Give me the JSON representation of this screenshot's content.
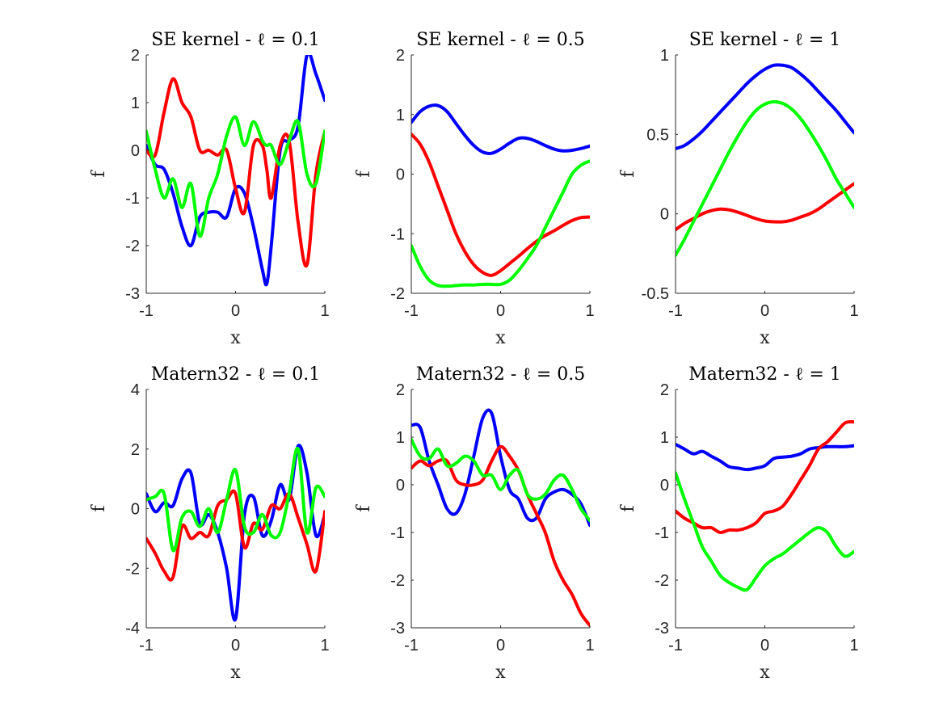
{
  "chart_data": [
    {
      "type": "line",
      "title": "SE kernel - ℓ = 0.1",
      "xlabel": "x",
      "ylabel": "f",
      "xlim": [
        -1,
        1
      ],
      "ylim": [
        -3,
        2
      ],
      "xticks": [
        "-1",
        "0",
        "1"
      ],
      "yticks": [
        "-3",
        "-2",
        "-1",
        "0",
        "1",
        "2"
      ],
      "x": [
        -1,
        -0.9,
        -0.8,
        -0.7,
        -0.6,
        -0.5,
        -0.4,
        -0.3,
        -0.2,
        -0.1,
        0,
        0.1,
        0.2,
        0.3,
        0.35,
        0.4,
        0.5,
        0.6,
        0.7,
        0.8,
        0.9,
        1
      ],
      "series": [
        {
          "color": "#0000ff",
          "values": [
            0.1,
            -0.3,
            -0.4,
            -0.9,
            -1.6,
            -2.0,
            -1.4,
            -1.3,
            -1.3,
            -1.4,
            -0.8,
            -0.9,
            -1.6,
            -2.5,
            -2.8,
            -2.0,
            0.0,
            0.2,
            0.5,
            2.0,
            1.6,
            1.05
          ]
        },
        {
          "color": "#ff0000",
          "values": [
            0.0,
            -0.1,
            0.8,
            1.5,
            1.0,
            0.7,
            0.0,
            0.0,
            -0.1,
            0.0,
            -0.8,
            -1.3,
            0.1,
            0.1,
            -0.4,
            -1.0,
            0.1,
            0.2,
            -1.5,
            -2.4,
            -0.5,
            0.4
          ]
        },
        {
          "color": "#00ff00",
          "values": [
            0.4,
            -0.4,
            -1.0,
            -0.6,
            -1.2,
            -0.7,
            -1.8,
            -1.0,
            -0.5,
            0.3,
            0.7,
            0.1,
            0.6,
            0.2,
            0.1,
            0.1,
            -0.3,
            0.2,
            0.6,
            -0.5,
            -0.7,
            0.4
          ]
        }
      ]
    },
    {
      "type": "line",
      "title": "SE kernel - ℓ = 0.5",
      "xlabel": "x",
      "ylabel": "f",
      "xlim": [
        -1,
        1
      ],
      "ylim": [
        -2,
        2
      ],
      "xticks": [
        "-1",
        "0",
        "1"
      ],
      "yticks": [
        "-2",
        "-1",
        "0",
        "1",
        "2"
      ],
      "x": [
        -1,
        -0.9,
        -0.8,
        -0.7,
        -0.6,
        -0.5,
        -0.4,
        -0.3,
        -0.2,
        -0.1,
        0,
        0.1,
        0.2,
        0.3,
        0.4,
        0.5,
        0.6,
        0.7,
        0.8,
        0.9,
        1
      ],
      "series": [
        {
          "color": "#0000ff",
          "values": [
            0.87,
            1.05,
            1.14,
            1.15,
            1.05,
            0.85,
            0.65,
            0.48,
            0.37,
            0.35,
            0.42,
            0.52,
            0.6,
            0.6,
            0.55,
            0.48,
            0.42,
            0.39,
            0.4,
            0.43,
            0.47
          ]
        },
        {
          "color": "#ff0000",
          "values": [
            0.67,
            0.5,
            0.2,
            -0.2,
            -0.6,
            -1.0,
            -1.3,
            -1.52,
            -1.65,
            -1.7,
            -1.62,
            -1.5,
            -1.38,
            -1.25,
            -1.13,
            -1.03,
            -0.95,
            -0.86,
            -0.78,
            -0.73,
            -0.72
          ]
        },
        {
          "color": "#00ff00",
          "values": [
            -1.2,
            -1.55,
            -1.78,
            -1.87,
            -1.88,
            -1.87,
            -1.86,
            -1.86,
            -1.85,
            -1.85,
            -1.85,
            -1.78,
            -1.62,
            -1.42,
            -1.2,
            -0.9,
            -0.6,
            -0.3,
            -0.0,
            0.15,
            0.22
          ]
        }
      ]
    },
    {
      "type": "line",
      "title": "SE kernel - ℓ = 1",
      "xlabel": "x",
      "ylabel": "f",
      "xlim": [
        -1,
        1
      ],
      "ylim": [
        -0.5,
        1
      ],
      "xticks": [
        "-1",
        "0",
        "1"
      ],
      "yticks": [
        "-0.5",
        "0",
        "0.5",
        "1"
      ],
      "x": [
        -1,
        -0.9,
        -0.8,
        -0.7,
        -0.6,
        -0.5,
        -0.4,
        -0.3,
        -0.2,
        -0.1,
        0,
        0.1,
        0.2,
        0.3,
        0.4,
        0.5,
        0.6,
        0.7,
        0.8,
        0.9,
        1
      ],
      "series": [
        {
          "color": "#0000ff",
          "values": [
            0.41,
            0.43,
            0.47,
            0.52,
            0.58,
            0.64,
            0.7,
            0.76,
            0.82,
            0.87,
            0.91,
            0.935,
            0.935,
            0.92,
            0.88,
            0.83,
            0.77,
            0.71,
            0.65,
            0.58,
            0.51
          ]
        },
        {
          "color": "#ff0000",
          "values": [
            -0.1,
            -0.06,
            -0.03,
            0.0,
            0.02,
            0.03,
            0.025,
            0.01,
            -0.01,
            -0.03,
            -0.045,
            -0.05,
            -0.05,
            -0.04,
            -0.02,
            0.0,
            0.03,
            0.07,
            0.11,
            0.15,
            0.19
          ]
        },
        {
          "color": "#00ff00",
          "values": [
            -0.26,
            -0.16,
            -0.05,
            0.06,
            0.17,
            0.28,
            0.39,
            0.49,
            0.58,
            0.65,
            0.69,
            0.705,
            0.695,
            0.66,
            0.6,
            0.52,
            0.43,
            0.33,
            0.22,
            0.13,
            0.04
          ]
        }
      ]
    },
    {
      "type": "line",
      "title": "Matern32 - ℓ = 0.1",
      "xlabel": "x",
      "ylabel": "f",
      "xlim": [
        -1,
        1
      ],
      "ylim": [
        -4,
        4
      ],
      "xticks": [
        "-1",
        "0",
        "1"
      ],
      "yticks": [
        "-4",
        "-2",
        "0",
        "2",
        "4"
      ],
      "x": [
        -1,
        -0.9,
        -0.8,
        -0.7,
        -0.6,
        -0.5,
        -0.4,
        -0.3,
        -0.2,
        -0.1,
        0,
        0.1,
        0.2,
        0.3,
        0.4,
        0.5,
        0.6,
        0.7,
        0.8,
        0.9,
        1
      ],
      "series": [
        {
          "color": "#0000ff",
          "values": [
            0.5,
            -0.1,
            0.2,
            0.1,
            1.0,
            1.2,
            -0.5,
            -0.2,
            -0.8,
            -2.0,
            -3.7,
            -0.2,
            0.4,
            -0.9,
            -0.4,
            0.8,
            0.3,
            2.1,
            1.2,
            -0.9,
            -0.2
          ]
        },
        {
          "color": "#ff0000",
          "values": [
            -1.0,
            -1.5,
            -2.1,
            -2.3,
            -0.6,
            -1.0,
            -0.8,
            -0.9,
            0.1,
            0.3,
            0.5,
            -1.3,
            -0.5,
            -0.7,
            0.1,
            0.0,
            0.5,
            -0.3,
            -1.2,
            -2.1,
            -0.1
          ]
        },
        {
          "color": "#00ff00",
          "values": [
            0.3,
            0.4,
            0.5,
            -1.4,
            -0.3,
            -0.1,
            -0.6,
            0.0,
            -0.8,
            0.3,
            1.3,
            -0.6,
            -0.8,
            -0.2,
            -0.9,
            -0.8,
            0.5,
            2.0,
            -0.8,
            0.7,
            0.4
          ]
        }
      ]
    },
    {
      "type": "line",
      "title": "Matern32 - ℓ = 0.5",
      "xlabel": "x",
      "ylabel": "f",
      "xlim": [
        -1,
        1
      ],
      "ylim": [
        -3,
        2
      ],
      "xticks": [
        "-1",
        "0",
        "1"
      ],
      "yticks": [
        "-3",
        "-2",
        "-1",
        "0",
        "1",
        "2"
      ],
      "x": [
        -1,
        -0.9,
        -0.8,
        -0.7,
        -0.6,
        -0.5,
        -0.4,
        -0.3,
        -0.2,
        -0.1,
        0,
        0.1,
        0.2,
        0.3,
        0.4,
        0.5,
        0.6,
        0.7,
        0.8,
        0.9,
        1
      ],
      "series": [
        {
          "color": "#0000ff",
          "values": [
            1.25,
            1.2,
            0.5,
            0.0,
            -0.5,
            -0.6,
            -0.2,
            0.6,
            1.4,
            1.5,
            0.6,
            -0.1,
            -0.3,
            -0.7,
            -0.7,
            -0.3,
            -0.15,
            -0.1,
            -0.2,
            -0.4,
            -0.85
          ]
        },
        {
          "color": "#ff0000",
          "values": [
            0.35,
            0.5,
            0.4,
            0.5,
            0.5,
            0.1,
            0.0,
            0.0,
            0.1,
            0.5,
            0.8,
            0.6,
            0.3,
            -0.2,
            -0.6,
            -1.0,
            -1.6,
            -2.0,
            -2.3,
            -2.7,
            -2.95
          ]
        },
        {
          "color": "#00ff00",
          "values": [
            0.95,
            0.6,
            0.55,
            0.75,
            0.4,
            0.45,
            0.6,
            0.5,
            0.2,
            0.2,
            -0.1,
            0.2,
            0.3,
            -0.2,
            -0.3,
            -0.2,
            0.1,
            0.2,
            -0.1,
            -0.5,
            -0.75
          ]
        }
      ]
    },
    {
      "type": "line",
      "title": "Matern32 - ℓ = 1",
      "xlabel": "x",
      "ylabel": "f",
      "xlim": [
        -1,
        1
      ],
      "ylim": [
        -3,
        2
      ],
      "xticks": [
        "-1",
        "0",
        "1"
      ],
      "yticks": [
        "-3",
        "-2",
        "-1",
        "0",
        "1",
        "2"
      ],
      "x": [
        -1,
        -0.9,
        -0.8,
        -0.7,
        -0.6,
        -0.5,
        -0.4,
        -0.3,
        -0.2,
        -0.1,
        0,
        0.1,
        0.2,
        0.3,
        0.4,
        0.5,
        0.6,
        0.7,
        0.8,
        0.9,
        1
      ],
      "series": [
        {
          "color": "#0000ff",
          "values": [
            0.85,
            0.75,
            0.65,
            0.7,
            0.6,
            0.5,
            0.38,
            0.35,
            0.32,
            0.35,
            0.4,
            0.55,
            0.58,
            0.6,
            0.65,
            0.75,
            0.78,
            0.8,
            0.8,
            0.8,
            0.82
          ]
        },
        {
          "color": "#ff0000",
          "values": [
            -0.55,
            -0.7,
            -0.8,
            -0.9,
            -0.9,
            -1.0,
            -0.95,
            -0.95,
            -0.9,
            -0.8,
            -0.6,
            -0.55,
            -0.45,
            -0.2,
            0.1,
            0.4,
            0.75,
            0.9,
            1.1,
            1.3,
            1.32
          ]
        },
        {
          "color": "#00ff00",
          "values": [
            0.25,
            -0.3,
            -0.8,
            -1.3,
            -1.6,
            -1.9,
            -2.05,
            -2.15,
            -2.2,
            -1.95,
            -1.7,
            -1.55,
            -1.45,
            -1.3,
            -1.15,
            -1.0,
            -0.9,
            -1.0,
            -1.3,
            -1.5,
            -1.4
          ]
        }
      ]
    }
  ]
}
